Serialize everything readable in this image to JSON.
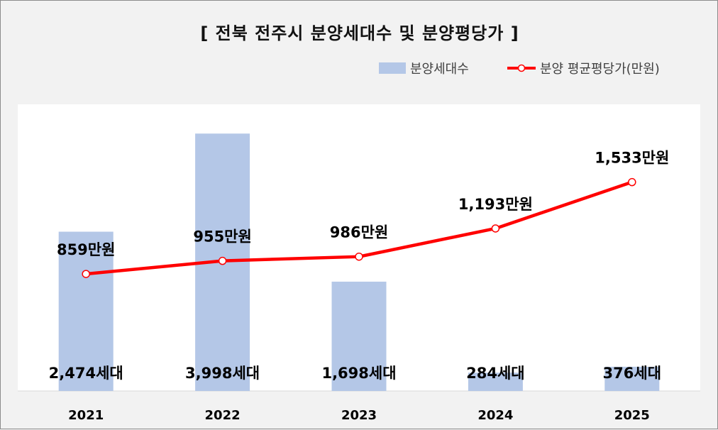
{
  "chart_data": {
    "type": "bar+line",
    "title": "[ 전북 전주시 분양세대수 및 분양평당가 ]",
    "categories": [
      "2021",
      "2022",
      "2023",
      "2024",
      "2025"
    ],
    "series": [
      {
        "name": "분양세대수",
        "type": "bar",
        "color": "#b4c7e7",
        "values": [
          2474,
          3998,
          1698,
          284,
          376
        ],
        "labels": [
          "2,474세대",
          "3,998세대",
          "1,698세대",
          "284세대",
          "376세대"
        ]
      },
      {
        "name": "분양 평균평당가(만원)",
        "type": "line",
        "color": "#ff0000",
        "values": [
          859,
          955,
          986,
          1193,
          1533
        ],
        "labels": [
          "859만원",
          "955만원",
          "986만원",
          "1,193만원",
          "1,533만원"
        ]
      }
    ],
    "legend_position": "top-right",
    "grid": false
  }
}
